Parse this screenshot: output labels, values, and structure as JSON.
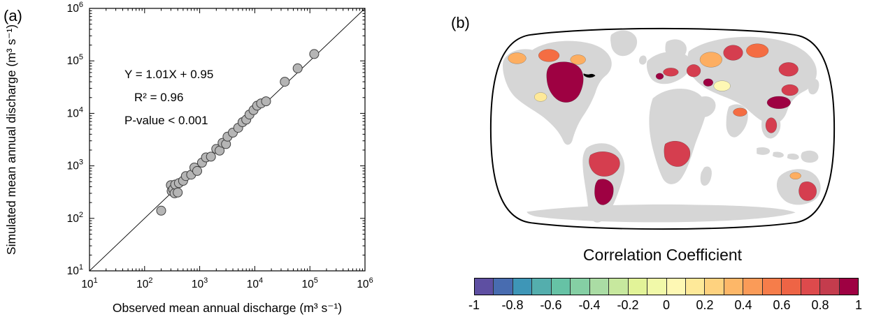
{
  "figure": {
    "background": "#ffffff"
  },
  "panel_a": {
    "label": "(a)"
  },
  "panel_b": {
    "label": "(b)"
  },
  "chart_data": [
    {
      "type": "scatter",
      "panel": "a",
      "xlabel": "Observed mean annual discharge (m³ s⁻¹)",
      "ylabel": "Simulated mean annual discharge (m³ s⁻¹)",
      "xscale": "log",
      "yscale": "log",
      "xlim": [
        10,
        1000000
      ],
      "ylim": [
        10,
        1000000
      ],
      "tick_exponents": [
        1,
        2,
        3,
        4,
        5,
        6
      ],
      "annotation_lines": [
        "Y = 1.01X + 0.95",
        "R² = 0.96",
        "P-value < 0.001"
      ],
      "fit": {
        "slope": 1.01,
        "intercept": 0.95,
        "r_squared": 0.96,
        "p_value": "< 0.001"
      },
      "one_to_one_line": [
        [
          10,
          10
        ],
        [
          1000000,
          1000000
        ]
      ],
      "marker": {
        "fill": "#b5b5b5",
        "stroke": "#3f3f3f",
        "radius": 6.5
      },
      "points": [
        [
          200,
          140
        ],
        [
          300,
          430
        ],
        [
          310,
          330
        ],
        [
          330,
          360
        ],
        [
          350,
          300
        ],
        [
          360,
          440
        ],
        [
          400,
          310
        ],
        [
          420,
          470
        ],
        [
          500,
          520
        ],
        [
          560,
          640
        ],
        [
          700,
          680
        ],
        [
          800,
          930
        ],
        [
          900,
          800
        ],
        [
          1100,
          1150
        ],
        [
          1300,
          1450
        ],
        [
          1600,
          1500
        ],
        [
          2000,
          2100
        ],
        [
          2300,
          1950
        ],
        [
          2600,
          2750
        ],
        [
          3000,
          2600
        ],
        [
          3200,
          3600
        ],
        [
          4000,
          4300
        ],
        [
          5000,
          5300
        ],
        [
          6000,
          6800
        ],
        [
          7000,
          7600
        ],
        [
          8000,
          9500
        ],
        [
          9500,
          11500
        ],
        [
          11000,
          14000
        ],
        [
          13000,
          15500
        ],
        [
          16000,
          17000
        ],
        [
          35000,
          40000
        ],
        [
          60000,
          72000
        ],
        [
          120000,
          135000
        ]
      ]
    },
    {
      "type": "choropleth-map",
      "panel": "b",
      "title": "Correlation Coefficient",
      "projection": "robinson",
      "land_color": "#d6d6d6",
      "ocean_color": "#ffffff",
      "outline_color": "#000000",
      "colorbar": {
        "min": -1,
        "max": 1,
        "tick_labels": [
          "-1",
          "-0.8",
          "-0.6",
          "-0.4",
          "-0.2",
          "0",
          "0.2",
          "0.4",
          "0.6",
          "0.8",
          "1"
        ],
        "colors": [
          "#5e4fa2",
          "#486cb0",
          "#3e96b7",
          "#54aead",
          "#66c2a5",
          "#85cfa4",
          "#aadca4",
          "#c7e89e",
          "#e2f398",
          "#f1f9a9",
          "#fef8b4",
          "#fee999",
          "#fed27f",
          "#fdb768",
          "#fa9b58",
          "#f67d4a",
          "#ee6445",
          "#dd4a4c",
          "#c43c4d",
          "#9e0142"
        ]
      },
      "basins": [
        {
          "color": "#fdae61"
        },
        {
          "color": "#f46d43"
        },
        {
          "color": "#9e0142"
        },
        {
          "color": "#fee999"
        },
        {
          "color": "#fdae61"
        },
        {
          "color": "#d53e4f"
        },
        {
          "color": "#9e0142"
        },
        {
          "color": "#d53e4f"
        },
        {
          "color": "#d53e4f"
        },
        {
          "color": "#9e0142"
        },
        {
          "color": "#fdae61"
        },
        {
          "color": "#d53e4f"
        },
        {
          "color": "#f46d43"
        },
        {
          "color": "#d53e4f"
        },
        {
          "color": "#d53e4f"
        },
        {
          "color": "#fef8b4"
        },
        {
          "color": "#9e0142"
        },
        {
          "color": "#9e0142"
        },
        {
          "color": "#d53e4f"
        },
        {
          "color": "#d53e4f"
        },
        {
          "color": "#f46d43"
        },
        {
          "color": "#d53e4f"
        },
        {
          "color": "#fdae61"
        }
      ]
    }
  ]
}
